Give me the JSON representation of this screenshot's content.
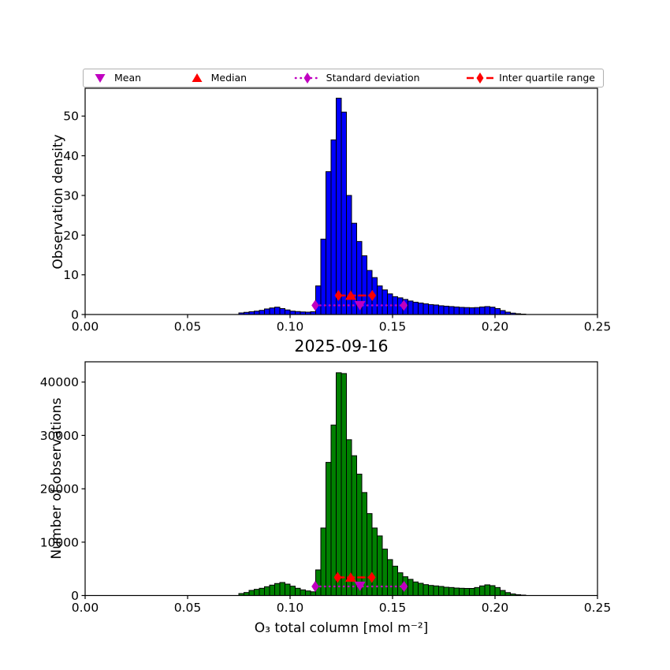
{
  "figure": {
    "background": "#ffffff"
  },
  "legend": {
    "border_color": "#b0b0b0",
    "items": [
      {
        "label": "Mean",
        "marker": "triangle-down",
        "color": "#c000c0",
        "linestyle": "none"
      },
      {
        "label": "Median",
        "marker": "triangle-up",
        "color": "#ff0000",
        "linestyle": "none"
      },
      {
        "label": "Standard deviation",
        "marker": "diamond",
        "color": "#c000c0",
        "linestyle": "dotted"
      },
      {
        "label": "Inter quartile range",
        "marker": "diamond",
        "color": "#ff0000",
        "linestyle": "dashed"
      }
    ]
  },
  "chart_data": [
    {
      "type": "bar",
      "title": "",
      "xlabel": "",
      "ylabel": "Observation density",
      "bar_color": "#0000ff",
      "bar_edge_color": "#000000",
      "bins_start": 0.075,
      "bin_width": 0.0025,
      "values": [
        0.4,
        0.55,
        0.7,
        0.85,
        1.05,
        1.4,
        1.65,
        1.85,
        1.5,
        1.15,
        0.85,
        0.75,
        0.65,
        0.6,
        0.7,
        7.2,
        19.0,
        36.0,
        44.0,
        54.5,
        51.0,
        30.0,
        23.0,
        18.4,
        14.8,
        11.1,
        9.3,
        7.2,
        6.2,
        5.2,
        4.5,
        4.2,
        3.8,
        3.4,
        3.1,
        2.9,
        2.7,
        2.5,
        2.4,
        2.2,
        2.1,
        2.0,
        1.9,
        1.8,
        1.75,
        1.7,
        1.75,
        1.9,
        2.0,
        1.85,
        1.5,
        1.0,
        0.6,
        0.35,
        0.2,
        0.1
      ],
      "xlim": [
        0.0,
        0.25
      ],
      "ylim": [
        0,
        57
      ],
      "xticks": [
        0.0,
        0.05,
        0.1,
        0.15,
        0.2,
        0.25
      ],
      "xtick_labels": [
        "0.00",
        "0.05",
        "0.10",
        "0.15",
        "0.20",
        "0.25"
      ],
      "yticks": [
        0,
        10,
        20,
        30,
        40,
        50
      ],
      "ytick_labels": [
        "0",
        "10",
        "20",
        "30",
        "40",
        "50"
      ],
      "grid": false,
      "markers": [
        {
          "name": "std-range",
          "type": "range",
          "style": "dotted",
          "color": "#c000c0",
          "marker": "diamond",
          "x1": 0.1123,
          "x2": 0.1555,
          "y": 2.3
        },
        {
          "name": "iqr-range",
          "type": "range",
          "style": "dashed",
          "color": "#ff0000",
          "marker": "diamond",
          "x1": 0.1236,
          "x2": 0.1401,
          "y": 4.8
        },
        {
          "name": "median",
          "type": "point",
          "color": "#ff0000",
          "marker": "triangle-up",
          "x": 0.1296,
          "y": 4.8
        },
        {
          "name": "mean",
          "type": "point",
          "color": "#c000c0",
          "marker": "triangle-down",
          "x": 0.1341,
          "y": 2.3
        }
      ]
    },
    {
      "type": "bar",
      "title": "2025-09-16",
      "xlabel": "O₃ total column [mol m⁻²]",
      "ylabel": "Number of observations",
      "bar_color": "#008000",
      "bar_edge_color": "#000000",
      "bins_start": 0.075,
      "bin_width": 0.0025,
      "values": [
        370,
        565,
        960,
        1160,
        1360,
        1650,
        1950,
        2250,
        2440,
        2140,
        1750,
        1360,
        1060,
        860,
        700,
        4800,
        12650,
        24950,
        31950,
        41750,
        41600,
        29200,
        26200,
        22750,
        19300,
        15350,
        12650,
        11170,
        8700,
        6730,
        5500,
        4260,
        3520,
        3030,
        2540,
        2290,
        2040,
        1890,
        1800,
        1700,
        1550,
        1500,
        1400,
        1360,
        1330,
        1330,
        1500,
        1800,
        2000,
        1850,
        1500,
        950,
        550,
        300,
        160,
        80
      ],
      "xlim": [
        0.0,
        0.25
      ],
      "ylim": [
        0,
        43800
      ],
      "xticks": [
        0.0,
        0.05,
        0.1,
        0.15,
        0.2,
        0.25
      ],
      "xtick_labels": [
        "0.00",
        "0.05",
        "0.10",
        "0.15",
        "0.20",
        "0.25"
      ],
      "yticks": [
        0,
        10000,
        20000,
        30000,
        40000
      ],
      "ytick_labels": [
        "0",
        "10000",
        "20000",
        "30000",
        "40000"
      ],
      "grid": false,
      "markers": [
        {
          "name": "std-range",
          "type": "range",
          "style": "dotted",
          "color": "#c000c0",
          "marker": "diamond",
          "x1": 0.1123,
          "x2": 0.1556,
          "y": 1700
        },
        {
          "name": "iqr-range",
          "type": "range",
          "style": "dashed",
          "color": "#ff0000",
          "marker": "diamond",
          "x1": 0.1232,
          "x2": 0.1399,
          "y": 3400
        },
        {
          "name": "median",
          "type": "point",
          "color": "#ff0000",
          "marker": "triangle-up",
          "x": 0.1296,
          "y": 3400
        },
        {
          "name": "mean",
          "type": "point",
          "color": "#c000c0",
          "marker": "triangle-down",
          "x": 0.1341,
          "y": 1800
        }
      ]
    }
  ]
}
